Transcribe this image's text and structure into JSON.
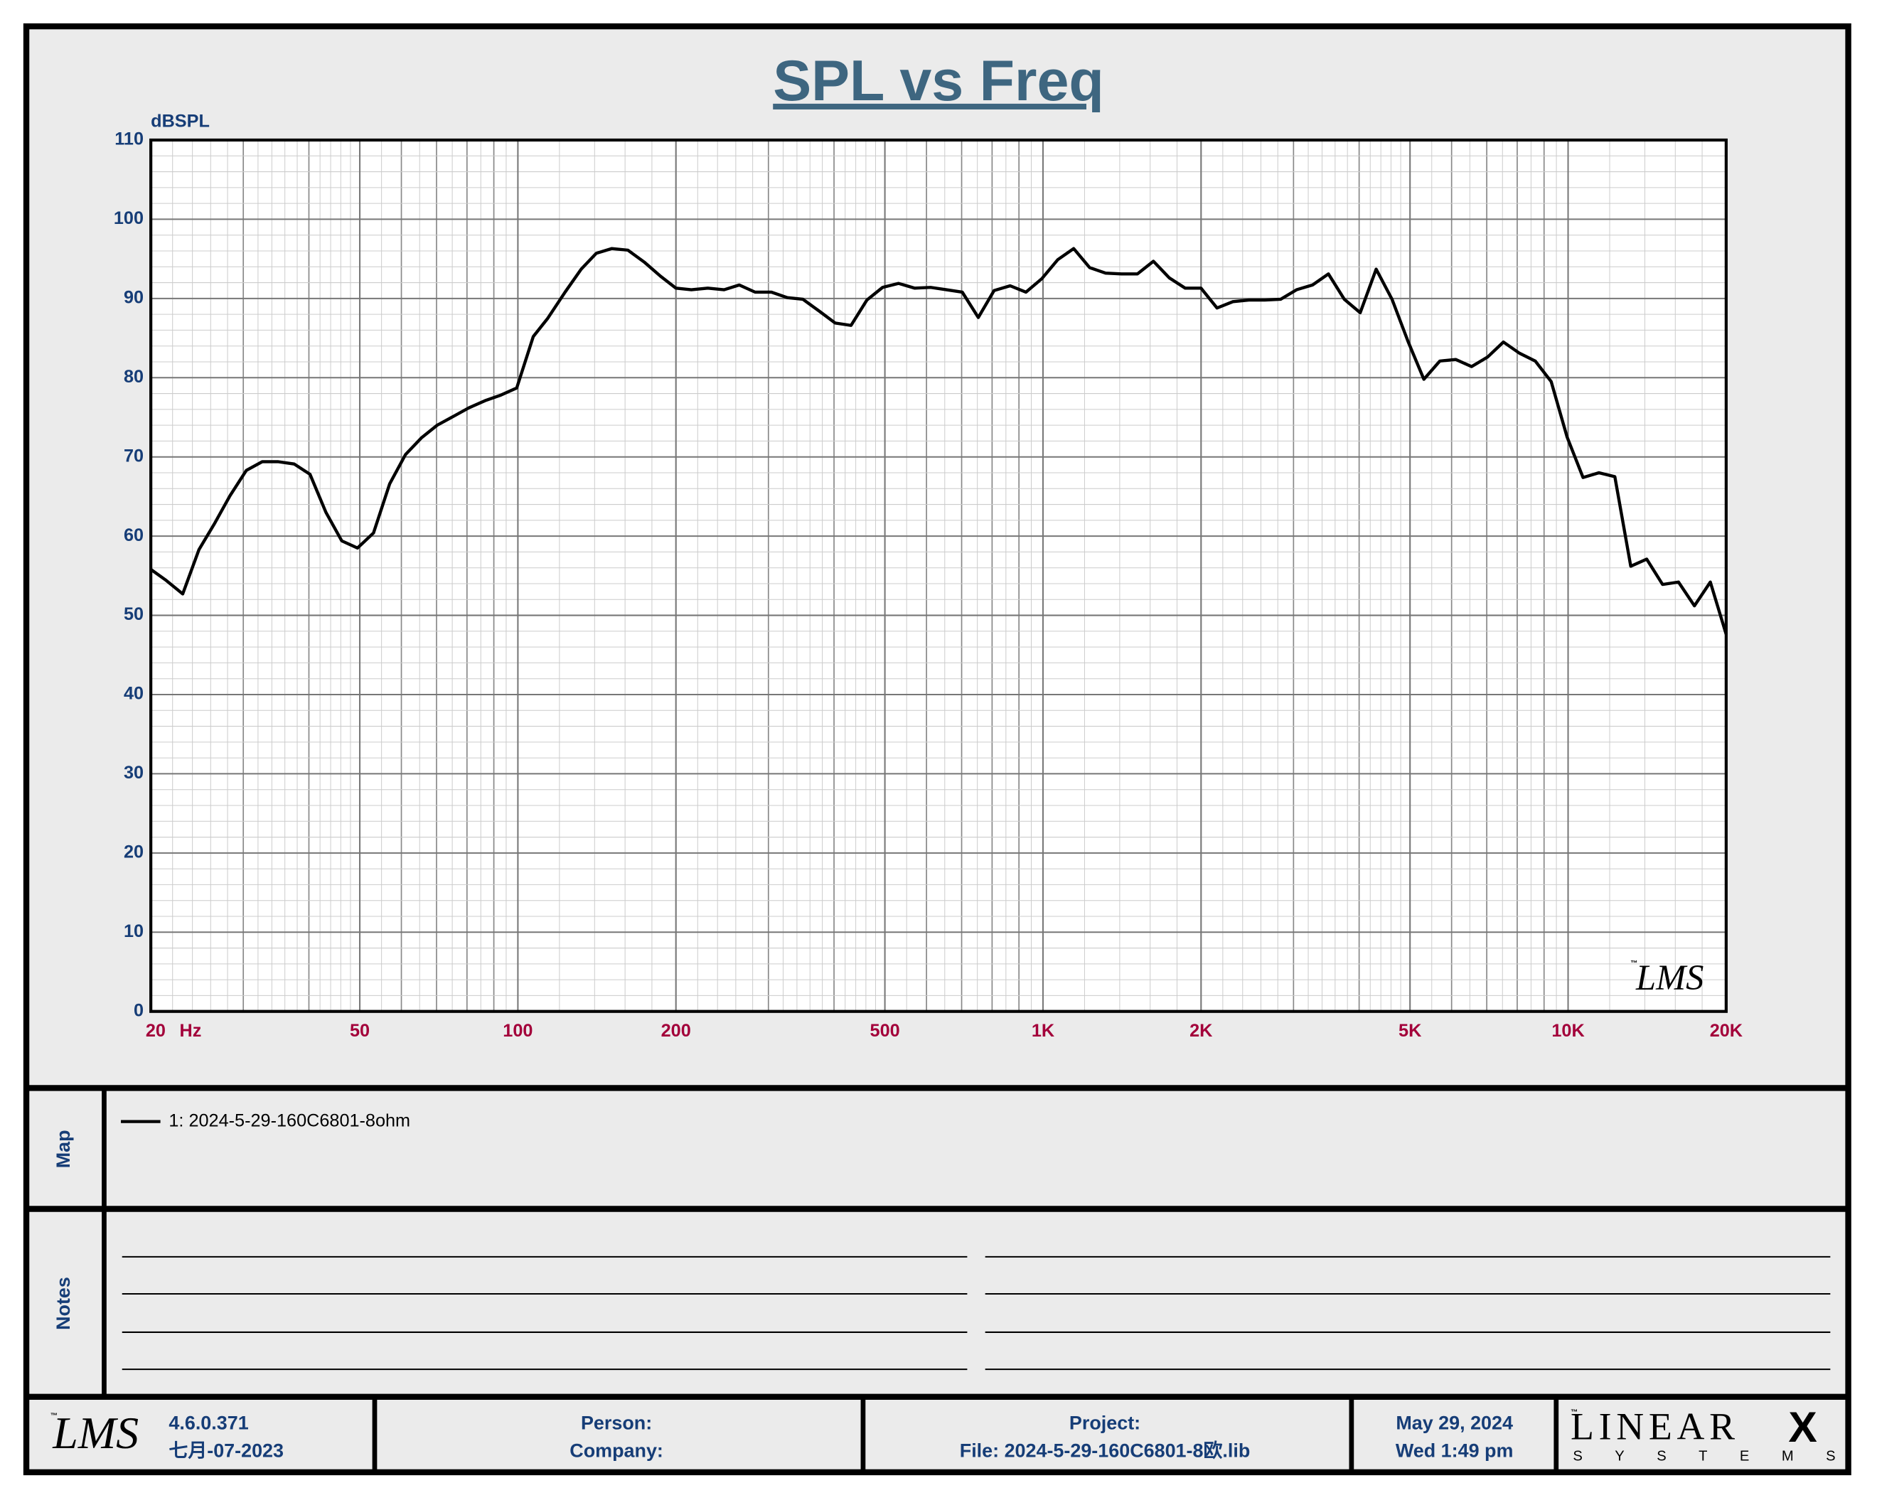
{
  "chart_data": {
    "type": "line",
    "title": "SPL vs Freq",
    "y_label": "dBSPL",
    "x_label": "Hz",
    "watermark": "LMS",
    "log_x": true,
    "grid": true,
    "minor_grid": true,
    "xlim": [
      20,
      20000
    ],
    "ylim": [
      0,
      110
    ],
    "xticks": [
      20,
      50,
      100,
      200,
      500,
      {
        "value": 1000,
        "label": "1K"
      },
      {
        "value": 2000,
        "label": "2K"
      },
      {
        "value": 5000,
        "label": "5K"
      },
      {
        "value": 10000,
        "label": "10K"
      },
      {
        "value": 20000,
        "label": "20K"
      }
    ],
    "yticks": [
      0,
      10,
      20,
      30,
      40,
      50,
      60,
      70,
      80,
      90,
      100,
      110
    ],
    "x": [
      20,
      21.4,
      23.0,
      24.7,
      26.4,
      28.3,
      30.4,
      32.6,
      34.9,
      37.5,
      40.2,
      43.1,
      46.2,
      49.5,
      53.1,
      57.0,
      61.1,
      65.5,
      70.2,
      75.3,
      80.7,
      86.6,
      92.8,
      99.5,
      107,
      114,
      123,
      132,
      141,
      151,
      162,
      174,
      187,
      200,
      214,
      230,
      247,
      264,
      283,
      304,
      326,
      349,
      375,
      402,
      431,
      462,
      495,
      531,
      570,
      611,
      655,
      702,
      753,
      807,
      866,
      928,
      995,
      1067,
      1144,
      1227,
      1316,
      1411,
      1513,
      1623,
      1740,
      1866,
      2000,
      2145,
      2300,
      2466,
      2644,
      2835,
      3040,
      3260,
      3496,
      3748,
      4019,
      4310,
      4621,
      4955,
      5313,
      5697,
      6109,
      6550,
      7024,
      7531,
      8076,
      8660,
      9286,
      9957,
      10677,
      11448,
      12275,
      13162,
      14114,
      15133,
      16228,
      17401,
      18658,
      20000
    ],
    "series": [
      {
        "name": "1: 2024-5-29-160C6801-8ohm",
        "color": "#000000",
        "values": [
          55.8,
          54.4,
          52.7,
          58.3,
          61.5,
          65.1,
          68.3,
          69.4,
          69.4,
          69.1,
          67.8,
          63.0,
          59.4,
          58.5,
          60.4,
          66.6,
          70.3,
          72.4,
          74.0,
          75.1,
          76.2,
          77.1,
          77.8,
          78.7,
          85.2,
          87.5,
          90.8,
          93.7,
          95.7,
          96.3,
          96.1,
          94.6,
          92.8,
          91.3,
          91.1,
          91.3,
          91.1,
          91.7,
          90.8,
          90.8,
          90.1,
          89.9,
          88.4,
          86.9,
          86.6,
          89.8,
          91.4,
          91.9,
          91.3,
          91.4,
          91.1,
          90.8,
          87.6,
          91.0,
          91.6,
          90.8,
          92.5,
          94.9,
          96.3,
          93.9,
          93.2,
          93.1,
          93.1,
          94.7,
          92.6,
          91.3,
          91.3,
          88.8,
          89.6,
          89.8,
          89.8,
          89.9,
          91.1,
          91.7,
          93.1,
          89.9,
          88.2,
          93.7,
          89.9,
          84.6,
          79.8,
          82.1,
          82.3,
          81.4,
          82.6,
          84.5,
          83.1,
          82.1,
          79.5,
          72.5,
          67.4,
          68.0,
          67.5,
          56.2,
          57.1,
          53.9,
          54.2,
          51.2,
          54.2,
          47.6
        ]
      }
    ]
  },
  "panels": {
    "map_label": "Map",
    "notes_label": "Notes"
  },
  "footer": {
    "trademark": "™",
    "logo": "LMS",
    "version": "4.6.0.371",
    "build_date": "七月-07-2023",
    "person": "Person:",
    "company": "Company:",
    "project": "Project:",
    "file": "File: 2024-5-29-160C6801-8欧.lib",
    "date": "May 29, 2024",
    "time": "Wed  1:49 pm",
    "brand": "LINEAR",
    "brand_x": "X",
    "brand_sub": "SYSTEMS"
  }
}
